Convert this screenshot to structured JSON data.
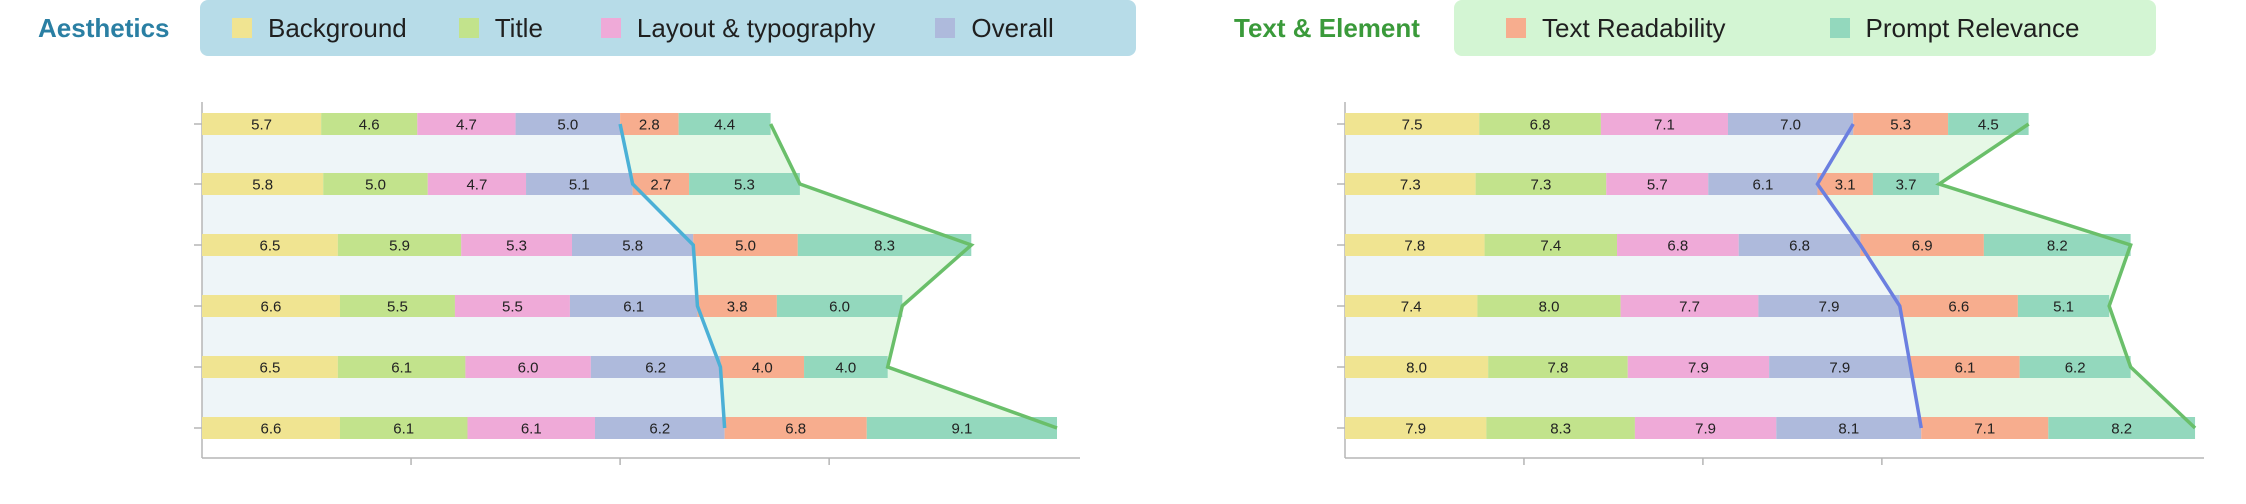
{
  "legend_left": {
    "title": "Aesthetics",
    "title_color": "#2a7fa3",
    "box_color": "#b7dce8",
    "items": [
      {
        "label": "Background",
        "color": "#f0e491"
      },
      {
        "label": "Title",
        "color": "#c2e38c"
      },
      {
        "label": "Layout & typography",
        "color": "#efaad8"
      },
      {
        "label": "Overall",
        "color": "#aebadc"
      }
    ]
  },
  "legend_right": {
    "title": "Text & Element",
    "title_color": "#3a9a3a",
    "box_color": "#d3f5d3",
    "items": [
      {
        "label": "Text Readability",
        "color": "#f7ad8e"
      },
      {
        "label": "Prompt Relevance",
        "color": "#93d8bd"
      }
    ]
  },
  "chart_data": [
    {
      "type": "bar",
      "orientation": "horizontal",
      "stacked": true,
      "rows": 6,
      "series": [
        {
          "color": "#f0e491",
          "values": [
            5.7,
            5.8,
            6.5,
            6.6,
            6.5,
            6.6
          ]
        },
        {
          "color": "#c2e38c",
          "values": [
            4.6,
            5.0,
            5.9,
            5.5,
            6.1,
            6.1
          ]
        },
        {
          "color": "#efaad8",
          "values": [
            4.7,
            4.7,
            5.3,
            5.5,
            6.0,
            6.1
          ]
        },
        {
          "color": "#aebadc",
          "values": [
            5.0,
            5.1,
            5.8,
            6.1,
            6.2,
            6.2
          ]
        },
        {
          "color": "#f7ad8e",
          "values": [
            2.8,
            2.7,
            5.0,
            3.8,
            4.0,
            6.8
          ]
        },
        {
          "color": "#93d8bd",
          "values": [
            4.4,
            5.3,
            8.3,
            6.0,
            4.0,
            9.1
          ]
        }
      ],
      "xlim": [
        0,
        42
      ],
      "xticks_unlabeled": [
        10,
        20,
        30
      ],
      "divider_color": "#4bb0d6",
      "envelope_color": "#6abf6a"
    },
    {
      "type": "bar",
      "orientation": "horizontal",
      "stacked": true,
      "rows": 6,
      "series": [
        {
          "color": "#f0e491",
          "values": [
            7.5,
            7.3,
            7.8,
            7.4,
            8.0,
            7.9
          ]
        },
        {
          "color": "#c2e38c",
          "values": [
            6.8,
            7.3,
            7.4,
            8.0,
            7.8,
            8.3
          ]
        },
        {
          "color": "#efaad8",
          "values": [
            7.1,
            5.7,
            6.8,
            7.7,
            7.9,
            7.9
          ]
        },
        {
          "color": "#aebadc",
          "values": [
            7.0,
            6.1,
            6.8,
            7.9,
            7.9,
            8.1
          ]
        },
        {
          "color": "#f7ad8e",
          "values": [
            5.3,
            3.1,
            6.9,
            6.6,
            6.1,
            7.1
          ]
        },
        {
          "color": "#93d8bd",
          "values": [
            4.5,
            3.7,
            8.2,
            5.1,
            6.2,
            8.2
          ]
        }
      ],
      "xlim": [
        0,
        48
      ],
      "xticks_unlabeled": [
        10,
        20,
        30
      ],
      "divider_color": "#6b7fe0",
      "envelope_color": "#6abf6a"
    }
  ]
}
